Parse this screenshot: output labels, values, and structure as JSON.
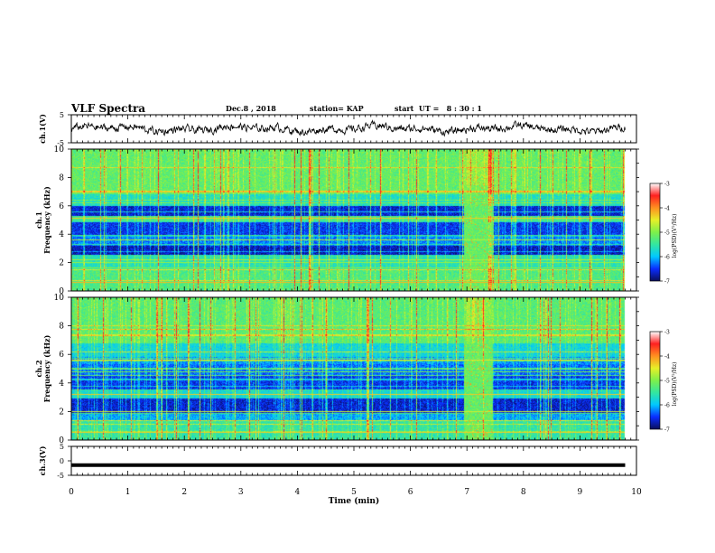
{
  "header": {
    "title": "VLF Spectra",
    "date": "Dec.8 , 2018",
    "station": "station= KAP",
    "start": "start  UT =   8 : 30 : 1"
  },
  "colors": {
    "colormap": [
      "#0a0f5a",
      "#0a2cff",
      "#00c8ff",
      "#33e6a0",
      "#7ef04a",
      "#e6f028",
      "#ff9020",
      "#ff2020",
      "#ffffff"
    ],
    "trace": "#000000",
    "axis": "#000000"
  },
  "chart_data": [
    {
      "type": "line",
      "panel": "ch1-waveform",
      "ylabel": "ch.1(V)",
      "ylim": [
        -5,
        5
      ],
      "y_ticks": [
        "5",
        "-5"
      ],
      "xlim": [
        0,
        10
      ],
      "series": [
        {
          "values_description_free": true,
          "amplitude_approx": 1.5,
          "mean": 0
        }
      ]
    },
    {
      "type": "heatmap",
      "panel": "ch1-spectrogram",
      "ylabel_line1": "ch.1",
      "ylabel_line2": "Frequency  (kHz)",
      "ylim": [
        0,
        10
      ],
      "y_ticks": [
        "0",
        "2",
        "4",
        "6",
        "8",
        "10"
      ],
      "xlim": [
        0,
        10
      ],
      "data_end_min": 9.8,
      "burst_interval_min": [
        6.95,
        7.45
      ],
      "colorbar": {
        "label": "log(PSD)(V²/Hz)",
        "ticks": [
          "-3",
          "-4",
          "-5",
          "-6",
          "-7"
        ],
        "range": [
          -7,
          -3
        ]
      }
    },
    {
      "type": "heatmap",
      "panel": "ch2-spectrogram",
      "ylabel_line1": "ch.2",
      "ylabel_line2": "Frequency  (kHz)",
      "ylim": [
        0,
        10
      ],
      "y_ticks": [
        "0",
        "2",
        "4",
        "6",
        "8",
        "10"
      ],
      "xlim": [
        0,
        10
      ],
      "data_end_min": 9.8,
      "burst_interval_min": [
        6.95,
        7.45
      ],
      "colorbar": {
        "label": "log(PSD)(V²/Hz)",
        "ticks": [
          "-3",
          "-4",
          "-5",
          "-6",
          "-7"
        ],
        "range": [
          -7,
          -3
        ]
      }
    },
    {
      "type": "line",
      "panel": "ch3-waveform",
      "ylabel": "ch.3(V)",
      "ylim": [
        -5,
        5
      ],
      "y_ticks": [
        "5",
        "0",
        "-5"
      ],
      "xlim": [
        0,
        10
      ],
      "x_ticks": [
        "0",
        "1",
        "2",
        "3",
        "4",
        "5",
        "6",
        "7",
        "8",
        "9",
        "10"
      ],
      "xlabel": "Time  (min)",
      "series": [
        {
          "constant_value": -1.5,
          "x_range": [
            0,
            9.8
          ]
        }
      ]
    }
  ]
}
